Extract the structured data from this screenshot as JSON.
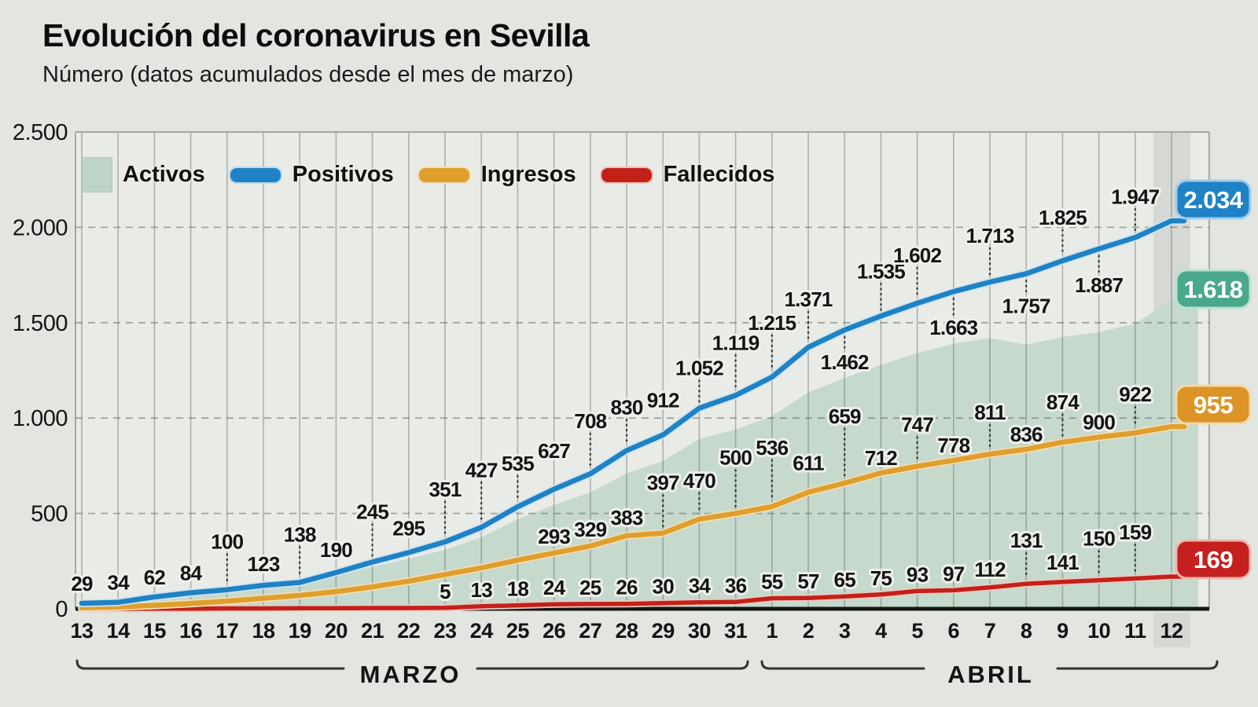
{
  "header": {
    "title": "Evolución del coronavirus en Sevilla",
    "subtitle": "Número (datos acumulados desde el mes de marzo)"
  },
  "legend": {
    "items": [
      {
        "id": "activos",
        "label": "Activos",
        "swatch": "area",
        "color": "#bed4c9",
        "border": "#b0c8bc"
      },
      {
        "id": "positivos",
        "label": "Positivos",
        "swatch": "pill",
        "color": "#1e82c4",
        "border": "#bcd9ec"
      },
      {
        "id": "ingresos",
        "label": "Ingresos",
        "swatch": "pill",
        "color": "#df9f2d",
        "border": "#f2ddb6"
      },
      {
        "id": "fallecidos",
        "label": "Fallecidos",
        "swatch": "pill",
        "color": "#c32118",
        "border": "#eec2bb"
      }
    ]
  },
  "chart_data": {
    "type": "area",
    "title": "Evolución del coronavirus en Sevilla",
    "subtitle": "Número (datos acumulados desde el mes de marzo)",
    "ylim": [
      0,
      2500
    ],
    "y_tick_values": [
      0,
      500,
      1000,
      1500,
      2000,
      2500
    ],
    "y_tick_labels": [
      "0",
      "500",
      "1.000",
      "1.500",
      "2.000",
      "2.500"
    ],
    "x_tick_labels": [
      "13",
      "14",
      "15",
      "16",
      "17",
      "18",
      "19",
      "20",
      "21",
      "22",
      "23",
      "24",
      "25",
      "26",
      "27",
      "28",
      "29",
      "30",
      "31",
      "1",
      "2",
      "3",
      "4",
      "5",
      "6",
      "7",
      "8",
      "9",
      "10",
      "11",
      "12"
    ],
    "highlighted_day": "12",
    "months": [
      {
        "label": "MARZO",
        "start_index": 0,
        "end_index": 18
      },
      {
        "label": "ABRIL",
        "start_index": 19,
        "end_index": 30
      }
    ],
    "grid": {
      "vertical": true,
      "horizontal_dashed": true
    },
    "series": [
      {
        "id": "activos",
        "name": "Activos",
        "type": "area",
        "color": "#c5d9cd",
        "end_label": "1.618",
        "end_box_color": "#4aa88c",
        "values_estimated": true,
        "values": [
          28,
          32,
          58,
          78,
          92,
          112,
          125,
          170,
          220,
          262,
          310,
          375,
          470,
          545,
          610,
          710,
          775,
          890,
          940,
          1010,
          1135,
          1210,
          1280,
          1340,
          1390,
          1420,
          1385,
          1425,
          1450,
          1495,
          1618
        ]
      },
      {
        "id": "positivos",
        "name": "Positivos",
        "type": "line",
        "color": "#1e82c4",
        "end_label": "2.034",
        "end_box_color": "#1e82c4",
        "label_start_index": 0,
        "values": [
          29,
          34,
          62,
          84,
          100,
          123,
          138,
          190,
          245,
          295,
          351,
          427,
          535,
          627,
          708,
          830,
          912,
          1052,
          1119,
          1215,
          1371,
          1462,
          1535,
          1602,
          1663,
          1713,
          1757,
          1825,
          1887,
          1947,
          2034
        ]
      },
      {
        "id": "ingresos",
        "name": "Ingresos",
        "type": "line",
        "color": "#df9f2d",
        "end_label": "955",
        "end_box_color": "#dd9426",
        "label_start_index": 13,
        "values": [
          5,
          10,
          18,
          28,
          40,
          55,
          70,
          90,
          115,
          145,
          180,
          215,
          255,
          293,
          329,
          383,
          397,
          470,
          500,
          536,
          611,
          659,
          712,
          747,
          778,
          811,
          836,
          874,
          900,
          922,
          955
        ]
      },
      {
        "id": "fallecidos",
        "name": "Fallecidos",
        "type": "line",
        "color": "#c32118",
        "end_label": "169",
        "end_box_color": "#c42020",
        "label_start_index": 10,
        "values": [
          0,
          0,
          1,
          1,
          2,
          2,
          3,
          3,
          4,
          4,
          5,
          13,
          18,
          24,
          25,
          26,
          30,
          34,
          36,
          55,
          57,
          65,
          75,
          93,
          97,
          112,
          131,
          141,
          150,
          159,
          169
        ]
      }
    ]
  }
}
